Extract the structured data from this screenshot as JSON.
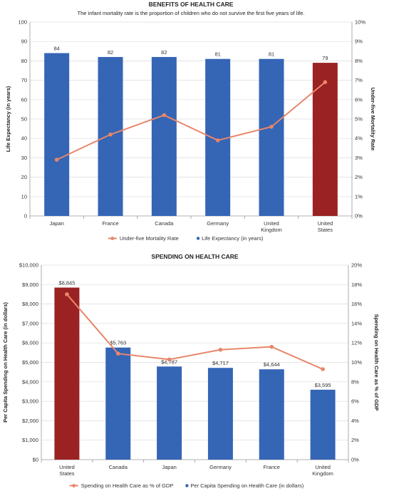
{
  "chart_data": [
    {
      "type": "bar",
      "title": "BENEFITS OF HEALTH CARE",
      "subtitle": "The infant mortality rate is the proportion of children who do not survive the first five years of life.",
      "categories": [
        "Japan",
        "France",
        "Canada",
        "Germany",
        "United Kingdom",
        "United States"
      ],
      "category_lines": [
        [
          "Japan"
        ],
        [
          "France"
        ],
        [
          "Canada"
        ],
        [
          "Germany"
        ],
        [
          "United",
          "Kingdom"
        ],
        [
          "United",
          "States"
        ]
      ],
      "ylabel": "Life Expectancy (in years)",
      "y2label": "Under-five Mortality Rate",
      "ylim": [
        0,
        100
      ],
      "y2lim": [
        0,
        10
      ],
      "yticks": [
        "0",
        "10",
        "20",
        "30",
        "40",
        "50",
        "60",
        "70",
        "80",
        "90",
        "100"
      ],
      "y2ticks": [
        "0%",
        "1%",
        "2%",
        "3%",
        "4%",
        "5%",
        "6%",
        "7%",
        "8%",
        "9%",
        "10%"
      ],
      "grid": true,
      "legend_position": "bottom",
      "bar_colors": [
        "#3565b5",
        "#3565b5",
        "#3565b5",
        "#3565b5",
        "#3565b5",
        "#9b2222"
      ],
      "line_color": "#e8866a",
      "series": [
        {
          "name": "Life Expectancy (in years)",
          "kind": "bar",
          "values": [
            84,
            82,
            82,
            81,
            81,
            79
          ],
          "labels": [
            "84",
            "82",
            "82",
            "81",
            "81",
            "79"
          ]
        },
        {
          "name": "Under-five Mortality Rate",
          "kind": "line",
          "axis": "right",
          "values": [
            2.9,
            4.2,
            5.2,
            3.9,
            4.6,
            6.9
          ]
        }
      ]
    },
    {
      "type": "bar",
      "title": "SPENDING ON HEALTH CARE",
      "categories": [
        "United States",
        "Canada",
        "Japan",
        "Germany",
        "France",
        "United Kingdom"
      ],
      "category_lines": [
        [
          "United",
          "States"
        ],
        [
          "Canada"
        ],
        [
          "Japan"
        ],
        [
          "Germany"
        ],
        [
          "France"
        ],
        [
          "United",
          "Kingdom"
        ]
      ],
      "ylabel": "Per Capita Spending on Health Care (in dollars)",
      "y2label": "Spending on Health Care as % of GDP",
      "ylim": [
        0,
        10000
      ],
      "y2lim": [
        0,
        20
      ],
      "yticks": [
        "$0",
        "$1,000",
        "$2,000",
        "$3,000",
        "$4,000",
        "$5,000",
        "$6,000",
        "$7,000",
        "$8,000",
        "$9,000",
        "$10,000"
      ],
      "y2ticks": [
        "0%",
        "2%",
        "4%",
        "6%",
        "8%",
        "10%",
        "12%",
        "14%",
        "16%",
        "18%",
        "20%"
      ],
      "grid": true,
      "legend_position": "bottom",
      "bar_colors": [
        "#9b2222",
        "#3565b5",
        "#3565b5",
        "#3565b5",
        "#3565b5",
        "#3565b5"
      ],
      "line_color": "#e8866a",
      "series": [
        {
          "name": "Per Capita Spending on Health Care (in dollars)",
          "kind": "bar",
          "values": [
            8845,
            5763,
            4787,
            4717,
            4644,
            3595
          ],
          "labels": [
            "$8,845",
            "$5,763",
            "$4,787",
            "$4,717",
            "$4,644",
            "$3,595"
          ]
        },
        {
          "name": "Spending on Health Care as % of GDP",
          "kind": "line",
          "axis": "right",
          "values": [
            17.0,
            10.9,
            10.3,
            11.3,
            11.6,
            9.3
          ]
        }
      ]
    }
  ]
}
